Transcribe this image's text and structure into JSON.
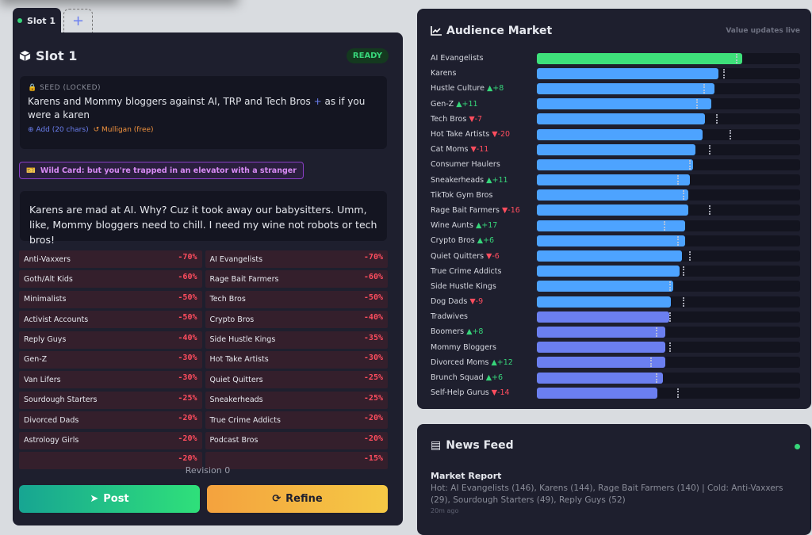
{
  "tabs": [
    {
      "label": "Slot 1",
      "active": true
    }
  ],
  "add_tab_label": "+",
  "slot": {
    "title": "Slot 1",
    "status": "READY",
    "seed_label": "SEED (LOCKED)",
    "seed_text": "Karens and Mommy bloggers against AI, TRP and Tech Bros",
    "seed_plus": "+",
    "seed_suffix": "as if you were a karen",
    "add_label": "Add (20 chars)",
    "mulligan_label": "Mulligan (free)",
    "wild_card": "Wild Card: but you're trapped in an elevator with a stranger",
    "post_text": "Karens are mad at AI. Why? Cuz it took away our babysitters. Umm, like, Mommy bloggers need to chill. I need my wine not robots or tech bros!",
    "reactions": [
      [
        "Anti-Vaxxers",
        "-70%",
        "AI Evangelists",
        "-70%"
      ],
      [
        "Goth/Alt Kids",
        "-60%",
        "Rage Bait Farmers",
        "-60%"
      ],
      [
        "Minimalists",
        "-50%",
        "Tech Bros",
        "-50%"
      ],
      [
        "Activist Accounts",
        "-50%",
        "Crypto Bros",
        "-40%"
      ],
      [
        "Reply Guys",
        "-40%",
        "Side Hustle Kings",
        "-35%"
      ],
      [
        "Gen-Z",
        "-30%",
        "Hot Take Artists",
        "-30%"
      ],
      [
        "Van Lifers",
        "-30%",
        "Quiet Quitters",
        "-25%"
      ],
      [
        "Sourdough Starters",
        "-25%",
        "Sneakerheads",
        "-25%"
      ],
      [
        "Divorced Dads",
        "-20%",
        "True Crime Addicts",
        "-20%"
      ],
      [
        "Astrology Girls",
        "-20%",
        "Podcast Bros",
        "-20%"
      ],
      [
        "",
        "-20%",
        "",
        "-15%"
      ]
    ],
    "revision": "Revision 0",
    "post_label": "Post",
    "refine_label": "Refine"
  },
  "market": {
    "title": "Audience Market",
    "subtitle": "Value updates live",
    "colors": {
      "top": "#3ee07a",
      "mid": "#4da3ff",
      "low": "#6b7ff0"
    },
    "rows": [
      {
        "name": "AI Evangelists",
        "delta": "",
        "fill": 78,
        "prev": 75.5,
        "tier": "top"
      },
      {
        "name": "Karens",
        "delta": "",
        "fill": 69,
        "prev": 70.7,
        "tier": "mid"
      },
      {
        "name": "Hustle Culture",
        "delta": "+8",
        "fill": 67.4,
        "prev": 63.4,
        "tier": "mid"
      },
      {
        "name": "Gen-Z",
        "delta": "+11",
        "fill": 66.2,
        "prev": 60.4,
        "tier": "mid"
      },
      {
        "name": "Tech Bros",
        "delta": "-7",
        "fill": 64,
        "prev": 68,
        "tier": "mid"
      },
      {
        "name": "Hot Take Artists",
        "delta": "-20",
        "fill": 63.1,
        "prev": 73.1,
        "tier": "mid"
      },
      {
        "name": "Cat Moms",
        "delta": "-11",
        "fill": 60.1,
        "prev": 65.3,
        "tier": "mid"
      },
      {
        "name": "Consumer Haulers",
        "delta": "",
        "fill": 59.2,
        "prev": 57.7,
        "tier": "mid"
      },
      {
        "name": "Sneakerheads",
        "delta": "+11",
        "fill": 58,
        "prev": 53.2,
        "tier": "mid"
      },
      {
        "name": "TikTok Gym Bros",
        "delta": "",
        "fill": 57.4,
        "prev": 55.3,
        "tier": "mid"
      },
      {
        "name": "Rage Bait Farmers",
        "delta": "-16",
        "fill": 57.4,
        "prev": 65.3,
        "tier": "mid"
      },
      {
        "name": "Wine Aunts",
        "delta": "+17",
        "fill": 56.2,
        "prev": 48.3,
        "tier": "mid"
      },
      {
        "name": "Crypto Bros",
        "delta": "+6",
        "fill": 56.2,
        "prev": 53.2,
        "tier": "mid"
      },
      {
        "name": "Quiet Quitters",
        "delta": "-6",
        "fill": 55,
        "prev": 57.7,
        "tier": "mid"
      },
      {
        "name": "True Crime Addicts",
        "delta": "",
        "fill": 54.1,
        "prev": 55.3,
        "tier": "mid"
      },
      {
        "name": "Side Hustle Kings",
        "delta": "",
        "fill": 51.9,
        "prev": 50.4,
        "tier": "mid"
      },
      {
        "name": "Dog Dads",
        "delta": "-9",
        "fill": 51,
        "prev": 55.3,
        "tier": "mid"
      },
      {
        "name": "Tradwives",
        "delta": "",
        "fill": 50.2,
        "prev": 50.2,
        "tier": "low"
      },
      {
        "name": "Boomers",
        "delta": "+8",
        "fill": 48.9,
        "prev": 45.3,
        "tier": "low"
      },
      {
        "name": "Mommy Bloggers",
        "delta": "",
        "fill": 48.9,
        "prev": 50.2,
        "tier": "low"
      },
      {
        "name": "Divorced Moms",
        "delta": "+12",
        "fill": 48.9,
        "prev": 43.2,
        "tier": "low"
      },
      {
        "name": "Brunch Squad",
        "delta": "+6",
        "fill": 48,
        "prev": 45.3,
        "tier": "low"
      },
      {
        "name": "Self-Help Gurus",
        "delta": "-14",
        "fill": 45.9,
        "prev": 53.2,
        "tier": "low"
      }
    ]
  },
  "news": {
    "title": "News Feed",
    "items": [
      {
        "headline": "Market Report",
        "body": "Hot: AI Evangelists (146), Karens (144), Rage Bait Farmers (140) | Cold: Anti-Vaxxers (29), Sourdough Starters (49), Reply Guys (52)",
        "time": "20m ago"
      }
    ]
  }
}
